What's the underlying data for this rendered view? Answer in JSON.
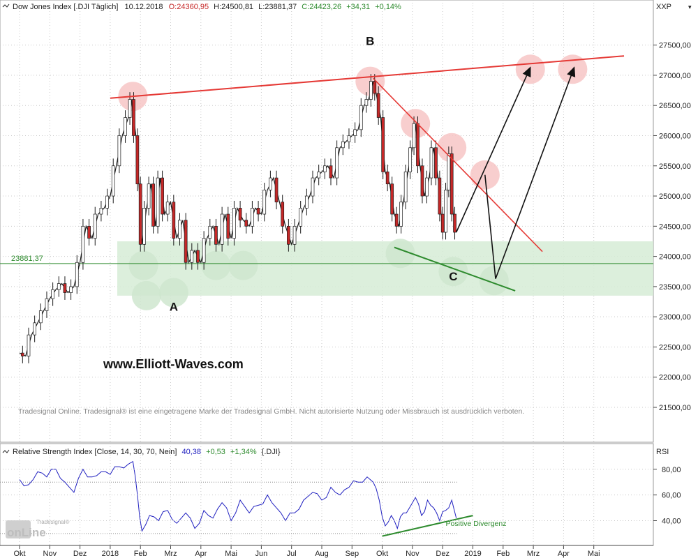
{
  "chart_data": {
    "type": "candlestick",
    "header": {
      "name": "Dow Jones Index [.DJI  Täglich]",
      "date": "10.12.2018",
      "open": "O:24360,95",
      "high": "H:24500,81",
      "low": "L:23881,37",
      "close": "C:24423,26",
      "change": "+34,31",
      "change_pct": "+0,14%"
    },
    "price_axis_label": "XXP",
    "y_ticks": [
      "27500,00",
      "27000,00",
      "26500,00",
      "26000,00",
      "25500,00",
      "25000,00",
      "24500,00",
      "24000,00",
      "23500,00",
      "23000,00",
      "22500,00",
      "22000,00",
      "21500,00"
    ],
    "y_tick_values": [
      27500,
      27000,
      26500,
      26000,
      25500,
      25000,
      24500,
      24000,
      23500,
      23000,
      22500,
      22000,
      21500
    ],
    "ylim": [
      21200,
      27900
    ],
    "x_labels": [
      "Okt",
      "Nov",
      "Dez",
      "2018",
      "Feb",
      "Mrz",
      "Apr",
      "Mai",
      "Jun",
      "Jul",
      "Aug",
      "Sep",
      "Okt",
      "Nov",
      "Dez",
      "2019",
      "Feb",
      "Mrz",
      "Apr",
      "Mai"
    ],
    "x_month_index": [
      0,
      1,
      2,
      3,
      4,
      5,
      6,
      7,
      8,
      9,
      10,
      11,
      12,
      13,
      14,
      15,
      16,
      17,
      18,
      19
    ],
    "x_start": "2017-10",
    "current_level": {
      "label": "23881,37",
      "value": 23881.37
    },
    "support_zone": {
      "from": 23350,
      "to": 24250
    },
    "price_series": [
      {
        "m": 0.0,
        "v": 22400
      },
      {
        "m": 0.2,
        "v": 22350
      },
      {
        "m": 0.4,
        "v": 22700
      },
      {
        "m": 0.6,
        "v": 22900
      },
      {
        "m": 0.8,
        "v": 23100
      },
      {
        "m": 1.0,
        "v": 23300
      },
      {
        "m": 1.2,
        "v": 23450
      },
      {
        "m": 1.4,
        "v": 23550
      },
      {
        "m": 1.6,
        "v": 23400
      },
      {
        "m": 1.8,
        "v": 23500
      },
      {
        "m": 2.0,
        "v": 23900
      },
      {
        "m": 2.2,
        "v": 24500
      },
      {
        "m": 2.4,
        "v": 24300
      },
      {
        "m": 2.6,
        "v": 24700
      },
      {
        "m": 2.8,
        "v": 24800
      },
      {
        "m": 3.0,
        "v": 25000
      },
      {
        "m": 3.2,
        "v": 25500
      },
      {
        "m": 3.4,
        "v": 26000
      },
      {
        "m": 3.6,
        "v": 26300
      },
      {
        "m": 3.7,
        "v": 26600
      },
      {
        "m": 3.85,
        "v": 26000
      },
      {
        "m": 3.95,
        "v": 25200
      },
      {
        "m": 4.05,
        "v": 24200
      },
      {
        "m": 4.2,
        "v": 24800
      },
      {
        "m": 4.35,
        "v": 25200
      },
      {
        "m": 4.5,
        "v": 24500
      },
      {
        "m": 4.65,
        "v": 25300
      },
      {
        "m": 4.8,
        "v": 24700
      },
      {
        "m": 5.0,
        "v": 24900
      },
      {
        "m": 5.2,
        "v": 24300
      },
      {
        "m": 5.4,
        "v": 24600
      },
      {
        "m": 5.6,
        "v": 23900
      },
      {
        "m": 5.8,
        "v": 24100
      },
      {
        "m": 6.0,
        "v": 23900
      },
      {
        "m": 6.2,
        "v": 24300
      },
      {
        "m": 6.4,
        "v": 24500
      },
      {
        "m": 6.6,
        "v": 24200
      },
      {
        "m": 6.8,
        "v": 24700
      },
      {
        "m": 7.0,
        "v": 24300
      },
      {
        "m": 7.2,
        "v": 24800
      },
      {
        "m": 7.4,
        "v": 24600
      },
      {
        "m": 7.6,
        "v": 24500
      },
      {
        "m": 7.8,
        "v": 24800
      },
      {
        "m": 8.0,
        "v": 24700
      },
      {
        "m": 8.2,
        "v": 25100
      },
      {
        "m": 8.4,
        "v": 25300
      },
      {
        "m": 8.6,
        "v": 24900
      },
      {
        "m": 8.8,
        "v": 24500
      },
      {
        "m": 9.0,
        "v": 24200
      },
      {
        "m": 9.2,
        "v": 24500
      },
      {
        "m": 9.4,
        "v": 24800
      },
      {
        "m": 9.6,
        "v": 25000
      },
      {
        "m": 9.8,
        "v": 25300
      },
      {
        "m": 10.0,
        "v": 25400
      },
      {
        "m": 10.2,
        "v": 25500
      },
      {
        "m": 10.4,
        "v": 25300
      },
      {
        "m": 10.6,
        "v": 25800
      },
      {
        "m": 10.8,
        "v": 25900
      },
      {
        "m": 11.0,
        "v": 26000
      },
      {
        "m": 11.2,
        "v": 26100
      },
      {
        "m": 11.4,
        "v": 26500
      },
      {
        "m": 11.55,
        "v": 26600
      },
      {
        "m": 11.7,
        "v": 26900
      },
      {
        "m": 11.8,
        "v": 26700
      },
      {
        "m": 11.95,
        "v": 26300
      },
      {
        "m": 12.1,
        "v": 25400
      },
      {
        "m": 12.25,
        "v": 25200
      },
      {
        "m": 12.4,
        "v": 24700
      },
      {
        "m": 12.55,
        "v": 24500
      },
      {
        "m": 12.7,
        "v": 24900
      },
      {
        "m": 12.85,
        "v": 25400
      },
      {
        "m": 13.0,
        "v": 25800
      },
      {
        "m": 13.1,
        "v": 26200
      },
      {
        "m": 13.25,
        "v": 25500
      },
      {
        "m": 13.4,
        "v": 25000
      },
      {
        "m": 13.55,
        "v": 25300
      },
      {
        "m": 13.7,
        "v": 25800
      },
      {
        "m": 13.85,
        "v": 25300
      },
      {
        "m": 13.95,
        "v": 24700
      },
      {
        "m": 14.05,
        "v": 24400
      },
      {
        "m": 14.15,
        "v": 25100
      },
      {
        "m": 14.25,
        "v": 25700
      },
      {
        "m": 14.35,
        "v": 24700
      },
      {
        "m": 14.45,
        "v": 24400
      }
    ],
    "rsi": {
      "title": "Relative Strength Index [Close, 14, 30, 70, Nein]",
      "value": "40,38",
      "change": "+0,53",
      "change_pct": "+1,34%",
      "symbol": "{.DJI}",
      "axis_label": "RSI",
      "y_ticks": [
        "80,00",
        "60,00",
        "40,00"
      ],
      "y_tick_values": [
        80,
        60,
        40
      ],
      "ylim": [
        24,
        88
      ],
      "levels": [
        70,
        30
      ],
      "series": [
        {
          "m": 0.0,
          "v": 72
        },
        {
          "m": 0.3,
          "v": 68
        },
        {
          "m": 0.6,
          "v": 78
        },
        {
          "m": 0.9,
          "v": 74
        },
        {
          "m": 1.2,
          "v": 80
        },
        {
          "m": 1.5,
          "v": 70
        },
        {
          "m": 1.8,
          "v": 62
        },
        {
          "m": 2.1,
          "v": 80
        },
        {
          "m": 2.4,
          "v": 74
        },
        {
          "m": 2.7,
          "v": 78
        },
        {
          "m": 3.0,
          "v": 76
        },
        {
          "m": 3.3,
          "v": 82
        },
        {
          "m": 3.6,
          "v": 84
        },
        {
          "m": 3.75,
          "v": 86
        },
        {
          "m": 3.9,
          "v": 60
        },
        {
          "m": 4.05,
          "v": 32
        },
        {
          "m": 4.3,
          "v": 44
        },
        {
          "m": 4.6,
          "v": 40
        },
        {
          "m": 4.9,
          "v": 48
        },
        {
          "m": 5.2,
          "v": 38
        },
        {
          "m": 5.5,
          "v": 46
        },
        {
          "m": 5.8,
          "v": 34
        },
        {
          "m": 6.1,
          "v": 48
        },
        {
          "m": 6.4,
          "v": 42
        },
        {
          "m": 6.7,
          "v": 54
        },
        {
          "m": 7.0,
          "v": 40
        },
        {
          "m": 7.3,
          "v": 56
        },
        {
          "m": 7.6,
          "v": 46
        },
        {
          "m": 7.9,
          "v": 52
        },
        {
          "m": 8.2,
          "v": 60
        },
        {
          "m": 8.5,
          "v": 50
        },
        {
          "m": 8.8,
          "v": 40
        },
        {
          "m": 9.1,
          "v": 46
        },
        {
          "m": 9.4,
          "v": 56
        },
        {
          "m": 9.7,
          "v": 62
        },
        {
          "m": 10.0,
          "v": 56
        },
        {
          "m": 10.3,
          "v": 66
        },
        {
          "m": 10.6,
          "v": 60
        },
        {
          "m": 10.9,
          "v": 66
        },
        {
          "m": 11.2,
          "v": 70
        },
        {
          "m": 11.5,
          "v": 74
        },
        {
          "m": 11.7,
          "v": 70
        },
        {
          "m": 11.9,
          "v": 56
        },
        {
          "m": 12.1,
          "v": 36
        },
        {
          "m": 12.3,
          "v": 44
        },
        {
          "m": 12.5,
          "v": 34
        },
        {
          "m": 12.7,
          "v": 46
        },
        {
          "m": 12.9,
          "v": 50
        },
        {
          "m": 13.1,
          "v": 58
        },
        {
          "m": 13.3,
          "v": 44
        },
        {
          "m": 13.5,
          "v": 56
        },
        {
          "m": 13.7,
          "v": 50
        },
        {
          "m": 13.9,
          "v": 40
        },
        {
          "m": 14.1,
          "v": 48
        },
        {
          "m": 14.3,
          "v": 56
        },
        {
          "m": 14.45,
          "v": 42
        }
      ],
      "annotation": "Positive Divergenz"
    },
    "wave_labels": [
      {
        "text": "A",
        "m": 5.1,
        "v": 23100
      },
      {
        "text": "B",
        "m": 11.6,
        "v": 27500
      },
      {
        "text": "C",
        "m": 14.35,
        "v": 23600
      }
    ],
    "resistance_line": {
      "from": {
        "m": 3.0,
        "v": 26620
      },
      "to": {
        "m": 20.0,
        "v": 27320
      }
    },
    "downtrend_line": {
      "from": {
        "m": 11.7,
        "v": 26950
      },
      "to": {
        "m": 17.3,
        "v": 24080
      }
    },
    "support_line": {
      "from": {
        "m": 12.4,
        "v": 24150
      },
      "to": {
        "m": 16.4,
        "v": 23430
      }
    },
    "rsi_trend_line": {
      "from": {
        "m": 12.0,
        "v": 28
      },
      "to": {
        "m": 15.0,
        "v": 44
      }
    },
    "highlight_points": [
      {
        "m": 3.75,
        "v": 26650,
        "color": "#f7c6c6"
      },
      {
        "m": 11.6,
        "v": 26900,
        "color": "#f7c6c6"
      },
      {
        "m": 13.1,
        "v": 26200,
        "color": "#f7c6c6"
      },
      {
        "m": 14.3,
        "v": 25800,
        "color": "#f7c6c6"
      },
      {
        "m": 15.4,
        "v": 25350,
        "color": "#f7c6c6"
      },
      {
        "m": 16.9,
        "v": 27100,
        "color": "#f7c6c6"
      },
      {
        "m": 18.3,
        "v": 27100,
        "color": "#f7c6c6"
      },
      {
        "m": 4.1,
        "v": 23850,
        "color": "#cfe6cf"
      },
      {
        "m": 4.2,
        "v": 23350,
        "color": "#cfe6cf"
      },
      {
        "m": 5.1,
        "v": 23400,
        "color": "#cfe6cf"
      },
      {
        "m": 6.5,
        "v": 23850,
        "color": "#cfe6cf"
      },
      {
        "m": 7.4,
        "v": 23850,
        "color": "#cfe6cf"
      },
      {
        "m": 12.6,
        "v": 24050,
        "color": "#cfe6cf"
      },
      {
        "m": 14.35,
        "v": 23750,
        "color": "#cfe6cf"
      },
      {
        "m": 15.7,
        "v": 23600,
        "color": "#cfe6cf"
      }
    ],
    "projection_arrows": [
      {
        "points": [
          {
            "m": 14.45,
            "v": 24400
          },
          {
            "m": 16.9,
            "v": 27130
          }
        ]
      },
      {
        "points": [
          {
            "m": 15.4,
            "v": 25350
          },
          {
            "m": 15.75,
            "v": 23630
          },
          {
            "m": 18.35,
            "v": 27130
          }
        ]
      }
    ],
    "colors": {
      "up": "#ffffff",
      "down": "#c62828",
      "rsi": "#2020c0",
      "resistance": "#e53935",
      "support": "#2e8b2e",
      "zone": "#d6ecd6"
    }
  },
  "watermark": "www.Elliott-Waves.com",
  "disclaimer": "Tradesignal Online. Tradesignal® ist eine eingetragene Marke der Tradesignal GmbH. Nicht autorisierte Nutzung oder Missbrauch ist ausdrücklich verboten.",
  "logo": {
    "small": "Tradesignal®",
    "big": "onLine"
  }
}
